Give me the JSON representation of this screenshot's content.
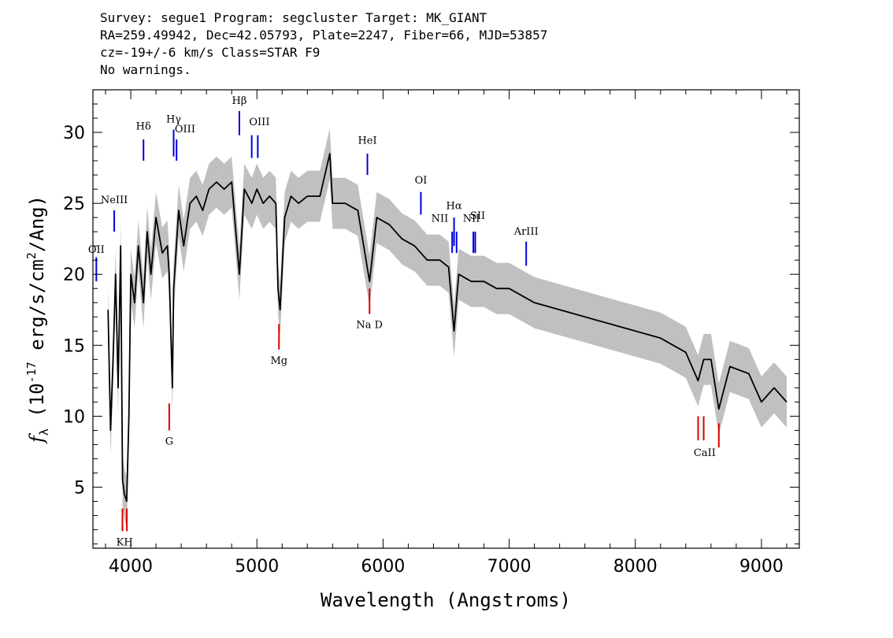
{
  "header": {
    "line1": "Survey: segue1 Program: segcluster Target: MK_GIANT",
    "line2": "RA=259.49942, Dec=42.05793, Plate=2247, Fiber=66, MJD=53857",
    "line3": "cz=-19+/-6 km/s Class=STAR F9",
    "line4": "No warnings."
  },
  "colors": {
    "spectrum": "#000000",
    "error_band": "#c0c0c0",
    "emission_marker": "#0000dd",
    "absorption_marker": "#dd0000"
  },
  "chart_data": {
    "type": "line",
    "xlabel": "Wavelength (Angstroms)",
    "ylabel": "f_λ (10^-17 erg/s/cm²/Ang)",
    "xlim": [
      3700,
      9300
    ],
    "ylim": [
      0.7,
      33
    ],
    "xticks": [
      4000,
      5000,
      6000,
      7000,
      8000,
      9000
    ],
    "yticks": [
      5,
      10,
      15,
      20,
      25,
      30
    ],
    "series": [
      {
        "x": [
          3820,
          3840,
          3860,
          3880,
          3900,
          3920,
          3935,
          3950,
          3968,
          3985,
          4000,
          4030,
          4060,
          4101,
          4130,
          4160,
          4200,
          4250,
          4290,
          4305,
          4330,
          4340,
          4380,
          4420,
          4470,
          4520,
          4570,
          4620,
          4680,
          4740,
          4800,
          4861,
          4900,
          4960,
          5000,
          5050,
          5100,
          5150,
          5167,
          5184,
          5220,
          5270,
          5330,
          5400,
          5500,
          5578,
          5600,
          5700,
          5800,
          5893,
          5950,
          6050,
          6150,
          6250,
          6350,
          6450,
          6520,
          6563,
          6600,
          6700,
          6800,
          6900,
          7000,
          7200,
          7400,
          7600,
          7800,
          8000,
          8200,
          8400,
          8498,
          8542,
          8600,
          8662,
          8750,
          8900,
          9000,
          9100,
          9200
        ],
        "values": [
          17.5,
          9.0,
          14.0,
          20.0,
          12.0,
          22.0,
          5.5,
          4.5,
          4.0,
          10.0,
          20.0,
          18.0,
          22.0,
          18.0,
          23.0,
          20.0,
          24.0,
          21.5,
          22.0,
          20.0,
          12.0,
          19.0,
          24.5,
          22.0,
          25.0,
          25.5,
          24.5,
          26.0,
          26.5,
          26.0,
          26.5,
          20.0,
          26.0,
          25.0,
          26.0,
          25.0,
          25.5,
          25.0,
          19.0,
          17.5,
          24.0,
          25.5,
          25.0,
          25.5,
          25.5,
          28.5,
          25.0,
          25.0,
          24.5,
          19.5,
          24.0,
          23.5,
          22.5,
          22.0,
          21.0,
          21.0,
          20.5,
          16.0,
          20.0,
          19.5,
          19.5,
          19.0,
          19.0,
          18.0,
          17.5,
          17.0,
          16.5,
          16.0,
          15.5,
          14.5,
          12.5,
          14.0,
          14.0,
          10.5,
          13.5,
          13.0,
          11.0,
          12.0,
          11.0
        ]
      }
    ],
    "emission_lines": [
      {
        "label": "OII",
        "x": 3727,
        "y1": 19.5,
        "y2": 21.2
      },
      {
        "label": "NeIII",
        "x": 3869,
        "y1": 23.0,
        "y2": 24.5
      },
      {
        "label": "Hδ",
        "x": 4101,
        "y1": 28.0,
        "y2": 29.5
      },
      {
        "label": "Hγ",
        "x": 4340,
        "y1": 28.3,
        "y2": 30.2
      },
      {
        "label": "OIII",
        "x": 4363,
        "y1": 28.0,
        "y2": 29.5
      },
      {
        "label": "Hβ",
        "x": 4861,
        "y1": 29.8,
        "y2": 31.5
      },
      {
        "label": "OIII",
        "x": 4959,
        "y1": 28.2,
        "y2": 29.8
      },
      {
        "label": "OIII",
        "x": 5007,
        "y1": 28.2,
        "y2": 29.8
      },
      {
        "label": "HeI",
        "x": 5876,
        "y1": 27.0,
        "y2": 28.5
      },
      {
        "label": "OI",
        "x": 6300,
        "y1": 24.2,
        "y2": 25.8
      },
      {
        "label": "NII",
        "x": 6548,
        "y1": 21.5,
        "y2": 23.0
      },
      {
        "label": "Hα",
        "x": 6563,
        "y1": 22.0,
        "y2": 24.0
      },
      {
        "label": "NII",
        "x": 6583,
        "y1": 21.5,
        "y2": 23.0
      },
      {
        "label": "SII",
        "x": 6716,
        "y1": 21.5,
        "y2": 23.0
      },
      {
        "label": "SII",
        "x": 6731,
        "y1": 21.5,
        "y2": 23.0
      },
      {
        "label": "ArIII",
        "x": 7135,
        "y1": 20.6,
        "y2": 22.3
      }
    ],
    "emission_label_positions": [
      {
        "label": "OII",
        "x": 3727,
        "y": 21.5
      },
      {
        "label": "NeIII",
        "x": 3869,
        "y": 25.0
      },
      {
        "label": "Hδ",
        "x": 4101,
        "y": 30.2
      },
      {
        "label": "Hγ",
        "x": 4340,
        "y": 30.7
      },
      {
        "label": "OIII",
        "x": 4430,
        "y": 30.0
      },
      {
        "label": "Hβ",
        "x": 4861,
        "y": 32.0
      },
      {
        "label": "OIII",
        "x": 5020,
        "y": 30.5
      },
      {
        "label": "HeI",
        "x": 5876,
        "y": 29.2
      },
      {
        "label": "OI",
        "x": 6300,
        "y": 26.4
      },
      {
        "label": "Hα",
        "x": 6563,
        "y": 24.6
      },
      {
        "label": "NII",
        "x": 6450,
        "y": 23.7
      },
      {
        "label": "NII",
        "x": 6700,
        "y": 23.7
      },
      {
        "label": "SII",
        "x": 6750,
        "y": 23.9
      },
      {
        "label": "ArIII",
        "x": 7135,
        "y": 22.8
      }
    ],
    "absorption_lines": [
      {
        "label": "K",
        "x": 3934,
        "y1": 1.9,
        "y2": 3.5
      },
      {
        "label": "H",
        "x": 3969,
        "y1": 1.9,
        "y2": 3.5
      },
      {
        "label": "G",
        "x": 4305,
        "y1": 9.0,
        "y2": 10.9
      },
      {
        "label": "Mg",
        "x": 5175,
        "y1": 14.7,
        "y2": 16.5
      },
      {
        "label": "Na D",
        "x": 5893,
        "y1": 17.2,
        "y2": 19.0
      },
      {
        "label": "CaII",
        "x": 8498,
        "y1": 8.3,
        "y2": 10.0
      },
      {
        "label": "CaII",
        "x": 8542,
        "y1": 8.3,
        "y2": 10.0
      },
      {
        "label": "CaII",
        "x": 8662,
        "y1": 7.8,
        "y2": 9.5
      }
    ],
    "absorption_label_positions": [
      {
        "label": "KH",
        "x": 3951,
        "y": 0.9
      },
      {
        "label": "G",
        "x": 4305,
        "y": 8.0
      },
      {
        "label": "Mg",
        "x": 5175,
        "y": 13.7
      },
      {
        "label": "Na D",
        "x": 5893,
        "y": 16.2
      },
      {
        "label": "CaII",
        "x": 8550,
        "y": 7.2
      }
    ]
  }
}
